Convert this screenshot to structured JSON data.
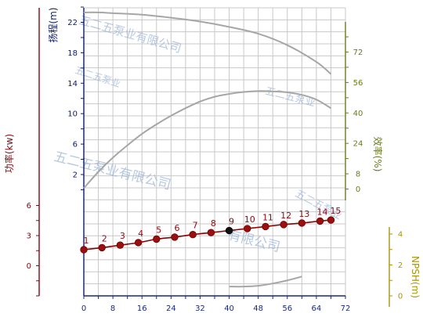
{
  "chart_data": {
    "type": "line",
    "xlim": [
      0,
      72
    ],
    "xticks": [
      0,
      8,
      16,
      24,
      32,
      40,
      48,
      56,
      64,
      72
    ],
    "grid": true,
    "axes": {
      "head": {
        "label": "扬程(m)",
        "range": [
          0,
          24
        ],
        "ticks": [
          2,
          6,
          10,
          14,
          18,
          22
        ],
        "color": "#0a1a6e"
      },
      "efficiency": {
        "label": "效率(%)",
        "range": [
          0,
          88
        ],
        "ticks": [
          0,
          8,
          24,
          40,
          56,
          72
        ],
        "color": "#6b7a1e"
      },
      "power": {
        "label": "功率(kw)",
        "range": [
          -3,
          6
        ],
        "ticks": [
          0,
          3,
          6
        ],
        "color": "#7a0a12"
      },
      "npsh": {
        "label": "NPSH(m)",
        "range": [
          0,
          4
        ],
        "ticks": [
          0,
          2,
          4
        ],
        "color": "#a6950f"
      }
    },
    "series": [
      {
        "axis": "head",
        "color": "#a6a6a6",
        "x": [
          0,
          4,
          8,
          16,
          24,
          32,
          40,
          48,
          56,
          64,
          68
        ],
        "y": [
          23.3,
          23.3,
          23.2,
          23.0,
          22.6,
          22.1,
          21.4,
          20.5,
          19.0,
          16.8,
          15.2
        ]
      },
      {
        "axis": "efficiency",
        "color": "#a6a6a6",
        "x": [
          0,
          4,
          8,
          12,
          16,
          20,
          24,
          28,
          32,
          36,
          40,
          44,
          48,
          52,
          56,
          60,
          64,
          68
        ],
        "y": [
          0.5,
          9,
          16.5,
          23,
          29,
          34,
          38.5,
          42.5,
          46,
          48.5,
          50,
          51,
          51.5,
          51.3,
          50.8,
          49.5,
          47,
          42.5
        ]
      },
      {
        "axis": "npsh",
        "color": "#a6a6a6",
        "x": [
          40,
          44,
          48,
          52,
          56,
          60
        ],
        "y": [
          0.6,
          0.6,
          0.65,
          0.8,
          1.0,
          1.25
        ]
      },
      {
        "axis": "power",
        "color": "#8b0000",
        "x": [
          0,
          5,
          10,
          15,
          20,
          25,
          30,
          35,
          40,
          45,
          50,
          55,
          60,
          65,
          68
        ],
        "y": [
          1.6,
          1.8,
          2.05,
          2.3,
          2.65,
          2.85,
          3.1,
          3.3,
          3.5,
          3.7,
          3.9,
          4.1,
          4.25,
          4.45,
          4.55
        ],
        "labels": [
          "1",
          "2",
          "3",
          "4",
          "5",
          "6",
          "7",
          "8",
          "9",
          "10",
          "11",
          "12",
          "13",
          "14",
          "15"
        ],
        "highlight_index": 8
      }
    ],
    "watermarks": [
      "五二五泵业有限公司",
      "五二五泵业",
      "五二五泵业",
      "五二五泵业",
      "五二五泵业有限公司",
      "有限公司"
    ]
  }
}
